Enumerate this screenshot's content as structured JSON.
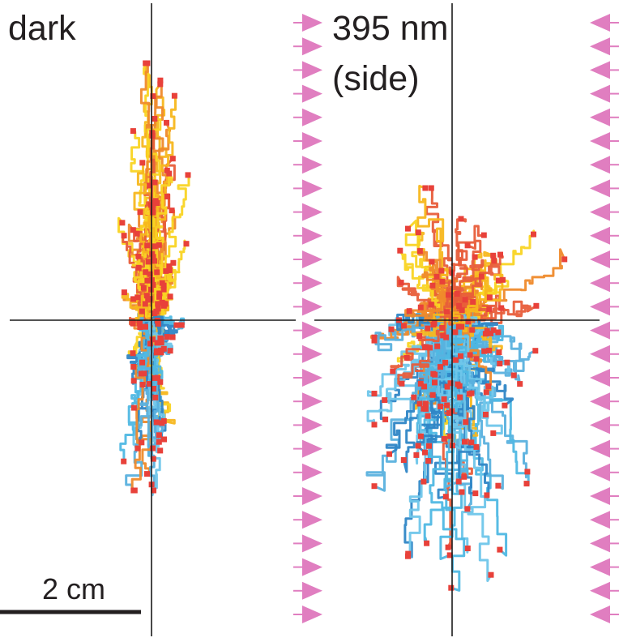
{
  "panels": [
    {
      "label": "dark",
      "spread": "narrow",
      "light_side": "none"
    },
    {
      "label": "395 nm",
      "label_line2": "(side)",
      "spread": "wide",
      "light_side": "both"
    }
  ],
  "scale_bar": {
    "label": "2 cm"
  },
  "colors": {
    "axis": "#1a1a1a",
    "endpoint": "#e8413a",
    "arrow": "#e07ec0",
    "track_palette": [
      "#f9d423",
      "#f7b71d",
      "#ef8a2b",
      "#e85d3a",
      "#4fb8e3",
      "#5ab1de",
      "#2f86c6",
      "#6fc6ea"
    ]
  },
  "icons": {
    "light_arrow": "triangle-arrow-icon"
  }
}
